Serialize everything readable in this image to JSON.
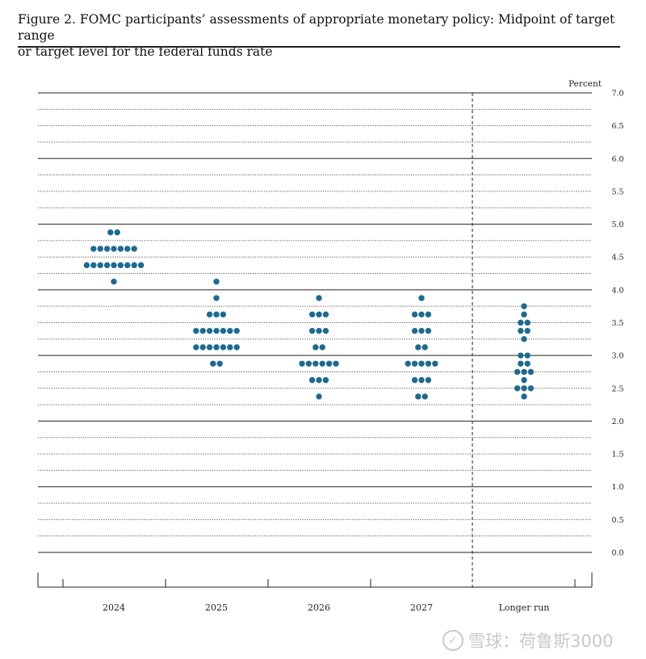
{
  "caption": {
    "line1": "Figure 2.  FOMC participants’ assessments of appropriate monetary policy:  Midpoint of target range",
    "line2": "or target level for the federal funds rate"
  },
  "watermark": {
    "text": "雪球：荷鲁斯3000"
  },
  "colors": {
    "dot": "#1e6a8f",
    "grid": "#333333"
  },
  "chart_data": {
    "type": "scatter",
    "title": "FOMC participants’ assessments of appropriate monetary policy: Midpoint of target range or target level for the federal funds rate",
    "ylabel": "Percent",
    "ylim": [
      0,
      7.0
    ],
    "y_ticks": [
      "0.0",
      "0.5",
      "1.0",
      "1.5",
      "2.0",
      "2.5",
      "3.0",
      "3.5",
      "4.0",
      "4.5",
      "5.0",
      "5.5",
      "6.0",
      "6.5",
      "7.0"
    ],
    "categories": [
      "2024",
      "2025",
      "2026",
      "2027",
      "Longer run"
    ],
    "grid": true,
    "dots": [
      [
        {
          "rate": 4.875,
          "count": 2
        },
        {
          "rate": 4.625,
          "count": 7
        },
        {
          "rate": 4.375,
          "count": 9
        },
        {
          "rate": 4.125,
          "count": 1
        }
      ],
      [
        {
          "rate": 4.125,
          "count": 1
        },
        {
          "rate": 3.875,
          "count": 1
        },
        {
          "rate": 3.625,
          "count": 3
        },
        {
          "rate": 3.375,
          "count": 7
        },
        {
          "rate": 3.125,
          "count": 7
        },
        {
          "rate": 2.875,
          "count": 2
        }
      ],
      [
        {
          "rate": 3.875,
          "count": 1
        },
        {
          "rate": 3.625,
          "count": 3
        },
        {
          "rate": 3.375,
          "count": 3
        },
        {
          "rate": 3.125,
          "count": 2
        },
        {
          "rate": 2.875,
          "count": 6
        },
        {
          "rate": 2.625,
          "count": 3
        },
        {
          "rate": 2.375,
          "count": 1
        }
      ],
      [
        {
          "rate": 3.875,
          "count": 1
        },
        {
          "rate": 3.625,
          "count": 3
        },
        {
          "rate": 3.375,
          "count": 3
        },
        {
          "rate": 3.125,
          "count": 2
        },
        {
          "rate": 2.875,
          "count": 5
        },
        {
          "rate": 2.625,
          "count": 3
        },
        {
          "rate": 2.375,
          "count": 2
        }
      ],
      [
        {
          "rate": 3.75,
          "count": 1
        },
        {
          "rate": 3.625,
          "count": 1
        },
        {
          "rate": 3.5,
          "count": 2
        },
        {
          "rate": 3.375,
          "count": 2
        },
        {
          "rate": 3.25,
          "count": 1
        },
        {
          "rate": 3.0,
          "count": 2
        },
        {
          "rate": 2.875,
          "count": 2
        },
        {
          "rate": 2.75,
          "count": 3
        },
        {
          "rate": 2.625,
          "count": 1
        },
        {
          "rate": 2.5,
          "count": 3
        },
        {
          "rate": 2.375,
          "count": 1
        }
      ]
    ]
  }
}
